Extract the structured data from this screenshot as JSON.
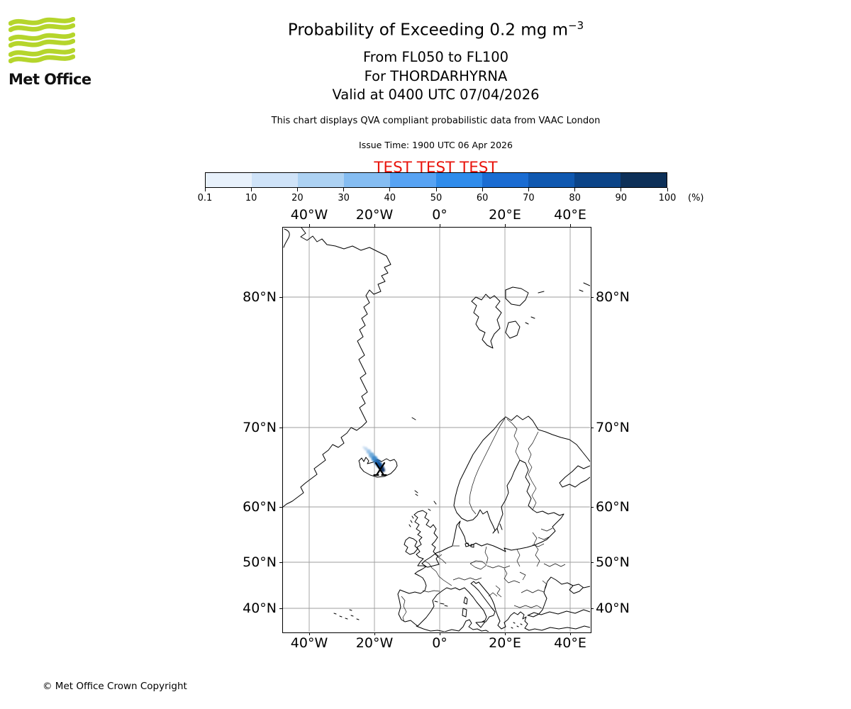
{
  "logo": {
    "brand": "Met Office",
    "wave_color": "#b5d52c"
  },
  "header": {
    "title_main": "Probability of Exceeding 0.2 mg m",
    "title_exp": "−3",
    "line_levels": "From FL050 to FL100",
    "line_volcano": "For THORDARHYRNA",
    "line_valid": "Valid at 0400 UTC 07/04/2026",
    "description": "This chart displays QVA compliant probabilistic data from VAAC London",
    "issue_time": "Issue Time: 1900 UTC 06 Apr 2026",
    "test_banner": "TEST TEST TEST",
    "test_color": "#e9150d"
  },
  "colorbar": {
    "tick_labels": [
      "0.1",
      "10",
      "20",
      "30",
      "40",
      "50",
      "60",
      "70",
      "80",
      "90",
      "100"
    ],
    "unit_label": "(%)",
    "colors": [
      "#e8f1fb",
      "#cfe3f8",
      "#add2f3",
      "#85bdf2",
      "#57a3f3",
      "#2f8ceb",
      "#1a6cd2",
      "#0f58b0",
      "#0b4488",
      "#0d3058"
    ]
  },
  "map": {
    "lon_labels": [
      "40°W",
      "20°W",
      "0°",
      "20°E",
      "40°E"
    ],
    "lat_labels": [
      "80°N",
      "70°N",
      "60°N",
      "50°N",
      "40°N"
    ],
    "gridline_color": "#9e9e9e"
  },
  "footer": {
    "copyright": "© Met Office Crown Copyright"
  },
  "chart_data": {
    "type": "map",
    "title": "Probability of Exceeding 0.2 mg m-3",
    "projection": "mercator-like, North Atlantic / Europe",
    "extent": {
      "lon_deg": [
        -48,
        46
      ],
      "lat_deg": [
        34,
        83
      ]
    },
    "lon_gridlines_deg": [
      -40,
      -20,
      0,
      20,
      40
    ],
    "lat_gridlines_deg": [
      80,
      70,
      60,
      50,
      40
    ],
    "probability_scale_percent": [
      0.1,
      10,
      20,
      30,
      40,
      50,
      60,
      70,
      80,
      90,
      100
    ],
    "volcano": {
      "name": "THORDARHYRNA",
      "location": "south-central Iceland",
      "approx_lon_deg": -18.5,
      "approx_lat_deg": 64.4
    },
    "plume": {
      "description": "Narrow ash plume extending NNW from the volcano over NW Iceland and adjacent sea",
      "gradient": "highest probability (dark blue, 90-100%) at the source, decreasing to low probability (pale blue, <10%) at the NW tip"
    }
  }
}
